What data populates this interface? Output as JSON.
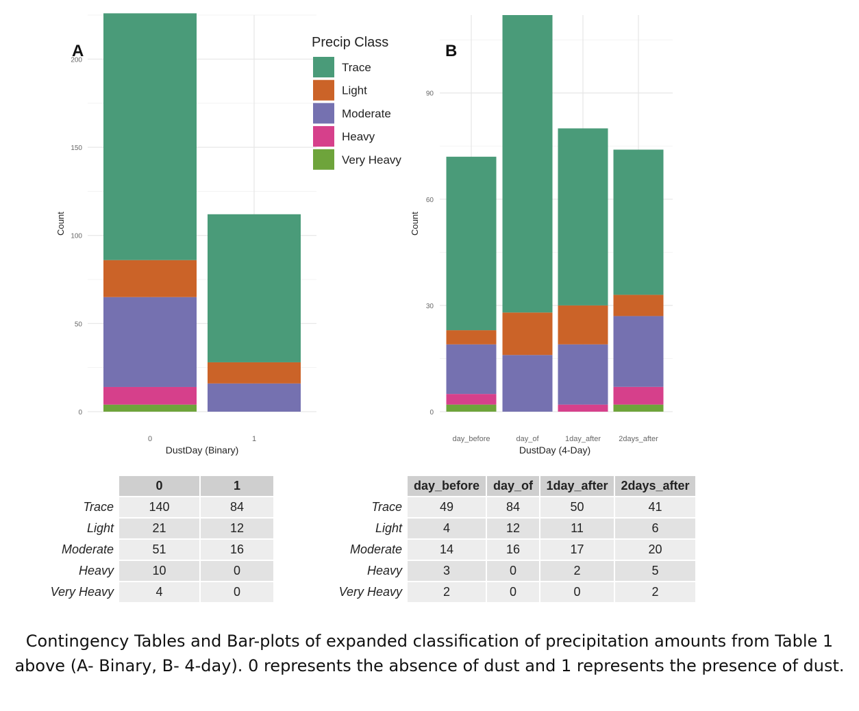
{
  "colors": {
    "Trace": "#4a9b79",
    "Light": "#cb6328",
    "Moderate": "#7571b0",
    "Heavy": "#d6408b",
    "Very Heavy": "#6ea43b"
  },
  "legend": {
    "title": "Precip Class",
    "items": [
      "Trace",
      "Light",
      "Moderate",
      "Heavy",
      "Very Heavy"
    ]
  },
  "chart_data": [
    {
      "type": "bar",
      "stacked": true,
      "panel_label": "A",
      "xlabel": "DustDay (Binary)",
      "ylabel": "Count",
      "categories": [
        "0",
        "1"
      ],
      "yticks": [
        0,
        50,
        100,
        150,
        200
      ],
      "ylim": [
        0,
        225
      ],
      "grid": true,
      "series": [
        {
          "name": "Very Heavy",
          "values": [
            4,
            0
          ]
        },
        {
          "name": "Heavy",
          "values": [
            10,
            0
          ]
        },
        {
          "name": "Moderate",
          "values": [
            51,
            16
          ]
        },
        {
          "name": "Light",
          "values": [
            21,
            12
          ]
        },
        {
          "name": "Trace",
          "values": [
            140,
            84
          ]
        }
      ]
    },
    {
      "type": "bar",
      "stacked": true,
      "panel_label": "B",
      "xlabel": "DustDay (4-Day)",
      "ylabel": "Count",
      "categories": [
        "day_before",
        "day_of",
        "1day_after",
        "2days_after"
      ],
      "yticks": [
        0,
        30,
        60,
        90
      ],
      "ylim": [
        0,
        112
      ],
      "grid": true,
      "series": [
        {
          "name": "Very Heavy",
          "values": [
            2,
            0,
            0,
            2
          ]
        },
        {
          "name": "Heavy",
          "values": [
            3,
            0,
            2,
            5
          ]
        },
        {
          "name": "Moderate",
          "values": [
            14,
            16,
            17,
            20
          ]
        },
        {
          "name": "Light",
          "values": [
            4,
            12,
            11,
            6
          ]
        },
        {
          "name": "Trace",
          "values": [
            49,
            84,
            50,
            41
          ]
        }
      ]
    }
  ],
  "tables": {
    "binary": {
      "columns": [
        "0",
        "1"
      ],
      "rows": [
        {
          "label": "Trace",
          "values": [
            "140",
            "84"
          ]
        },
        {
          "label": "Light",
          "values": [
            "21",
            "12"
          ]
        },
        {
          "label": "Moderate",
          "values": [
            "51",
            "16"
          ]
        },
        {
          "label": "Heavy",
          "values": [
            "10",
            "0"
          ]
        },
        {
          "label": "Very Heavy",
          "values": [
            "4",
            "0"
          ]
        }
      ]
    },
    "fourday": {
      "columns": [
        "day_before",
        "day_of",
        "1day_after",
        "2days_after"
      ],
      "rows": [
        {
          "label": "Trace",
          "values": [
            "49",
            "84",
            "50",
            "41"
          ]
        },
        {
          "label": "Light",
          "values": [
            "4",
            "12",
            "11",
            "6"
          ]
        },
        {
          "label": "Moderate",
          "values": [
            "14",
            "16",
            "17",
            "20"
          ]
        },
        {
          "label": "Heavy",
          "values": [
            "3",
            "0",
            "2",
            "5"
          ]
        },
        {
          "label": "Very Heavy",
          "values": [
            "2",
            "0",
            "0",
            "2"
          ]
        }
      ]
    }
  },
  "caption": "Contingency Tables and Bar-plots of expanded classification of precipitation amounts from Table 1 above (A- Binary, B- 4-day). 0 represents the absence of dust and 1 represents the presence of dust."
}
